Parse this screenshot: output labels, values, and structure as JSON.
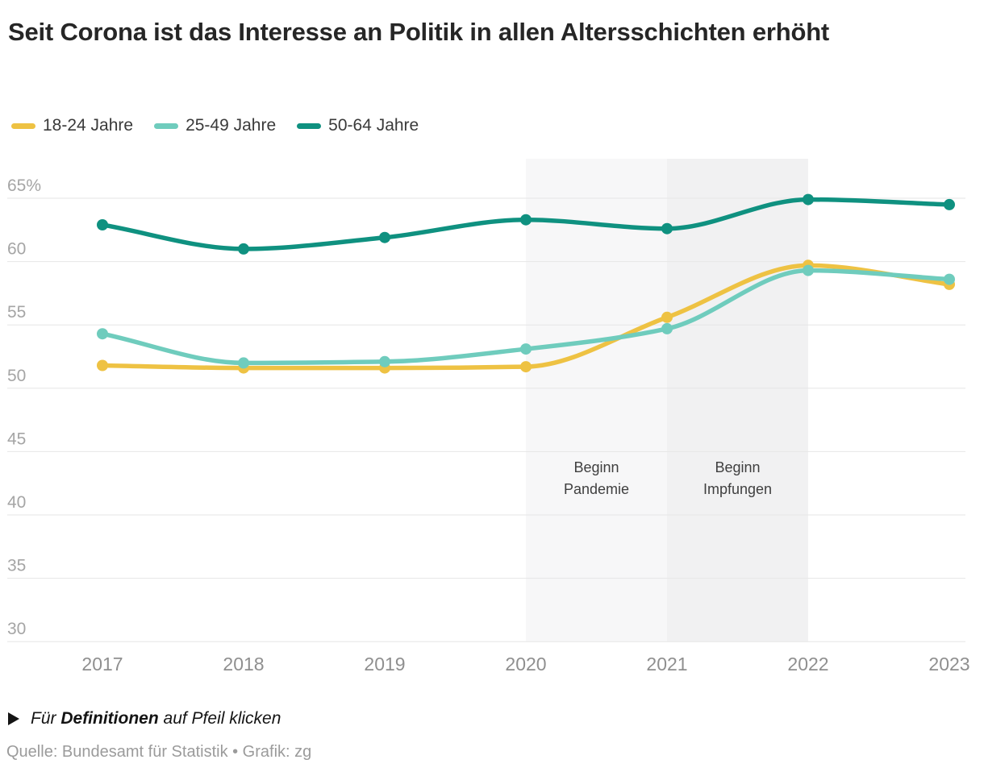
{
  "header": {
    "title": "Seit Corona ist das Interesse an Politik in allen Altersschichten erhöht"
  },
  "legend": {
    "items": [
      {
        "label": "18-24 Jahre",
        "color": "#eec243"
      },
      {
        "label": "25-49 Jahre",
        "color": "#6fccbd"
      },
      {
        "label": "50-64 Jahre",
        "color": "#0f9180"
      }
    ]
  },
  "chart_data": {
    "type": "line",
    "title": "Seit Corona ist das Interesse an Politik in allen Altersschichten erhöht",
    "xlabel": "",
    "ylabel": "",
    "x": [
      2017,
      2018,
      2019,
      2020,
      2021,
      2022,
      2023
    ],
    "ylim": [
      29,
      68
    ],
    "grid": "horizontal",
    "legend_position": "top",
    "y_ticks": [
      {
        "value": 65,
        "label": "65%"
      },
      {
        "value": 60,
        "label": "60"
      },
      {
        "value": 55,
        "label": "55"
      },
      {
        "value": 50,
        "label": "50"
      },
      {
        "value": 45,
        "label": "45"
      },
      {
        "value": 40,
        "label": "40"
      },
      {
        "value": 35,
        "label": "35"
      },
      {
        "value": 30,
        "label": "30"
      }
    ],
    "series": [
      {
        "name": "18-24 Jahre",
        "color": "#eec243",
        "values": [
          51.8,
          51.6,
          51.6,
          51.7,
          55.6,
          59.7,
          58.2
        ]
      },
      {
        "name": "25-49 Jahre",
        "color": "#6fccbd",
        "values": [
          54.3,
          52.0,
          52.1,
          53.1,
          54.7,
          59.3,
          58.6
        ]
      },
      {
        "name": "50-64 Jahre",
        "color": "#0f9180",
        "values": [
          62.9,
          61.0,
          61.9,
          63.3,
          62.6,
          64.9,
          64.5
        ]
      }
    ],
    "annotations": [
      {
        "lines": [
          "Beginn",
          "Pandemie"
        ],
        "x_from": 2020,
        "x_to": 2021,
        "fill": "#f7f7f8"
      },
      {
        "lines": [
          "Beginn",
          "Impfungen"
        ],
        "x_from": 2021,
        "x_to": 2022,
        "fill": "#f1f1f2"
      }
    ],
    "style": {
      "grid_color": "#e6e6e6",
      "y_tick_color": "#a5a5a5",
      "x_tick_color": "#8f8f8f",
      "annotation_text_color": "#3f3f3f"
    }
  },
  "note": {
    "prefix": "Für",
    "bold": "Definitionen",
    "suffix": "auf Pfeil klicken"
  },
  "footer": {
    "source": "Quelle: Bundesamt für Statistik • Grafik: zg"
  }
}
